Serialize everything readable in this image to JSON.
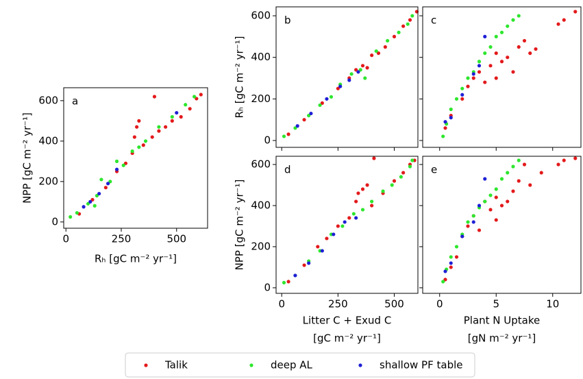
{
  "chart_data": [
    {
      "type": "scatter",
      "label": "a",
      "ylabel": "NPP [gC m⁻² yr⁻¹]",
      "xlabel": "Rₕ  [gC m⁻² yr⁻¹]",
      "xlim": [
        -10,
        640
      ],
      "ylim": [
        -31,
        664
      ],
      "xticks": [
        0,
        250,
        500
      ],
      "yticks": [
        0,
        200,
        400,
        600
      ],
      "series": [
        {
          "name": "Talik",
          "color": "#e31a1c",
          "x": [
            60,
            120,
            180,
            230,
            270,
            300,
            310,
            320,
            330,
            350,
            390,
            420,
            400,
            450,
            480,
            520,
            560,
            590,
            610
          ],
          "values": [
            40,
            110,
            170,
            250,
            290,
            340,
            420,
            470,
            500,
            380,
            420,
            450,
            620,
            470,
            500,
            520,
            560,
            610,
            630
          ]
        },
        {
          "name": "deep AL",
          "color": "#2ee62e",
          "x": [
            20,
            50,
            100,
            140,
            160,
            200,
            230,
            260,
            300,
            330,
            360,
            420,
            480,
            540,
            580,
            130
          ],
          "values": [
            25,
            45,
            90,
            130,
            210,
            200,
            300,
            280,
            350,
            370,
            400,
            470,
            520,
            580,
            620,
            80
          ]
        },
        {
          "name": "shallow PF table",
          "color": "#1f1fd6",
          "x": [
            80,
            110,
            150,
            190,
            230,
            500
          ],
          "values": [
            75,
            100,
            140,
            190,
            260,
            540
          ]
        }
      ]
    },
    {
      "type": "scatter",
      "label": "b",
      "ylabel": "Rₕ [gC m⁻² yr⁻¹]",
      "show_xticklabels": false,
      "xlim": [
        -25,
        605
      ],
      "ylim": [
        -33,
        643
      ],
      "xticks": [
        0,
        250,
        500
      ],
      "yticks": [
        0,
        200,
        400,
        600
      ],
      "series": [
        {
          "name": "Talik",
          "color": "#e31a1c",
          "x": [
            30,
            100,
            180,
            250,
            300,
            330,
            360,
            380,
            400,
            430,
            460,
            500,
            540,
            570,
            600
          ],
          "values": [
            30,
            100,
            180,
            250,
            300,
            340,
            360,
            350,
            410,
            420,
            450,
            500,
            550,
            580,
            620
          ]
        },
        {
          "name": "deep AL",
          "color": "#2ee62e",
          "x": [
            10,
            60,
            120,
            170,
            220,
            260,
            310,
            350,
            370,
            420,
            470,
            520,
            560,
            580
          ],
          "values": [
            20,
            60,
            120,
            170,
            210,
            270,
            320,
            340,
            300,
            430,
            480,
            520,
            560,
            600
          ]
        },
        {
          "name": "shallow PF table",
          "color": "#1f1fd6",
          "x": [
            70,
            130,
            200,
            260,
            300,
            340
          ],
          "values": [
            70,
            130,
            200,
            260,
            290,
            330
          ]
        }
      ]
    },
    {
      "type": "scatter",
      "label": "c",
      "show_xticklabels": false,
      "show_yticklabels": false,
      "xlim": [
        -1.5,
        12.5
      ],
      "ylim": [
        -33,
        643
      ],
      "xticks": [
        0,
        5,
        10
      ],
      "yticks": [
        0,
        200,
        400,
        600
      ],
      "series": [
        {
          "name": "Talik",
          "color": "#e31a1c",
          "x": [
            0.5,
            1,
            2,
            2.5,
            3,
            3.5,
            4,
            4.5,
            5,
            5,
            5.5,
            6,
            6.5,
            7,
            7.5,
            8,
            8.5,
            10.5,
            11,
            12
          ],
          "values": [
            60,
            120,
            200,
            260,
            300,
            330,
            280,
            360,
            300,
            420,
            380,
            400,
            330,
            450,
            480,
            420,
            440,
            560,
            580,
            620
          ]
        },
        {
          "name": "deep AL",
          "color": "#2ee62e",
          "x": [
            0.3,
            0.6,
            1,
            1.5,
            2,
            2.5,
            3,
            3.5,
            4,
            4.5,
            5,
            5.5,
            6,
            6.5,
            7
          ],
          "values": [
            20,
            80,
            150,
            200,
            250,
            300,
            330,
            380,
            420,
            450,
            500,
            520,
            550,
            580,
            600
          ]
        },
        {
          "name": "shallow PF table",
          "color": "#1f1fd6",
          "x": [
            0.5,
            1,
            2,
            3,
            3.5,
            4
          ],
          "values": [
            90,
            110,
            220,
            320,
            360,
            500
          ]
        }
      ]
    },
    {
      "type": "scatter",
      "label": "d",
      "ylabel": "NPP [gC m⁻² yr⁻¹]",
      "xlabel": [
        "Litter C + Exud C",
        "[gC m⁻² yr⁻¹]"
      ],
      "xlim": [
        -25,
        605
      ],
      "ylim": [
        -27,
        640
      ],
      "xticks": [
        0,
        250,
        500
      ],
      "yticks": [
        0,
        200,
        400,
        600
      ],
      "series": [
        {
          "name": "Talik",
          "color": "#e31a1c",
          "x": [
            30,
            100,
            160,
            200,
            250,
            300,
            330,
            340,
            360,
            380,
            410,
            400,
            450,
            500,
            540,
            570,
            590
          ],
          "values": [
            30,
            110,
            200,
            240,
            300,
            340,
            420,
            460,
            480,
            500,
            630,
            400,
            460,
            520,
            560,
            600,
            620
          ]
        },
        {
          "name": "deep AL",
          "color": "#2ee62e",
          "x": [
            10,
            60,
            120,
            170,
            220,
            270,
            320,
            360,
            400,
            450,
            490,
            530,
            570,
            580
          ],
          "values": [
            25,
            60,
            130,
            180,
            260,
            300,
            360,
            380,
            420,
            470,
            500,
            540,
            590,
            620
          ]
        },
        {
          "name": "shallow PF table",
          "color": "#1f1fd6",
          "x": [
            60,
            120,
            180,
            230,
            280,
            330
          ],
          "values": [
            60,
            120,
            180,
            260,
            320,
            340
          ]
        }
      ]
    },
    {
      "type": "scatter",
      "label": "e",
      "xlabel": [
        "Plant N Uptake",
        "[gN m⁻² yr⁻¹]"
      ],
      "show_yticklabels": false,
      "xlim": [
        -1.5,
        12.5
      ],
      "ylim": [
        -27,
        640
      ],
      "xticks": [
        0,
        5,
        10
      ],
      "yticks": [
        0,
        200,
        400,
        600
      ],
      "series": [
        {
          "name": "Talik",
          "color": "#e31a1c",
          "x": [
            0.5,
            1,
            1.5,
            2,
            2.5,
            3,
            3.5,
            4,
            4.5,
            5,
            5,
            5.5,
            6,
            6.5,
            7,
            7.5,
            8,
            9,
            10.5,
            11,
            12
          ],
          "values": [
            40,
            100,
            150,
            250,
            300,
            350,
            280,
            420,
            380,
            440,
            330,
            400,
            420,
            470,
            520,
            600,
            500,
            560,
            600,
            620,
            630
          ]
        },
        {
          "name": "deep AL",
          "color": "#2ee62e",
          "x": [
            0.3,
            0.6,
            1,
            1.5,
            2,
            2.5,
            3,
            3.5,
            4,
            4.5,
            5,
            5.5,
            6,
            6.5,
            7
          ],
          "values": [
            30,
            90,
            150,
            200,
            260,
            320,
            350,
            390,
            420,
            450,
            480,
            530,
            560,
            590,
            620
          ]
        },
        {
          "name": "shallow PF table",
          "color": "#1f1fd6",
          "x": [
            0.5,
            1,
            2,
            3,
            3.5,
            4
          ],
          "values": [
            80,
            120,
            250,
            320,
            400,
            530
          ]
        }
      ]
    }
  ]
}
